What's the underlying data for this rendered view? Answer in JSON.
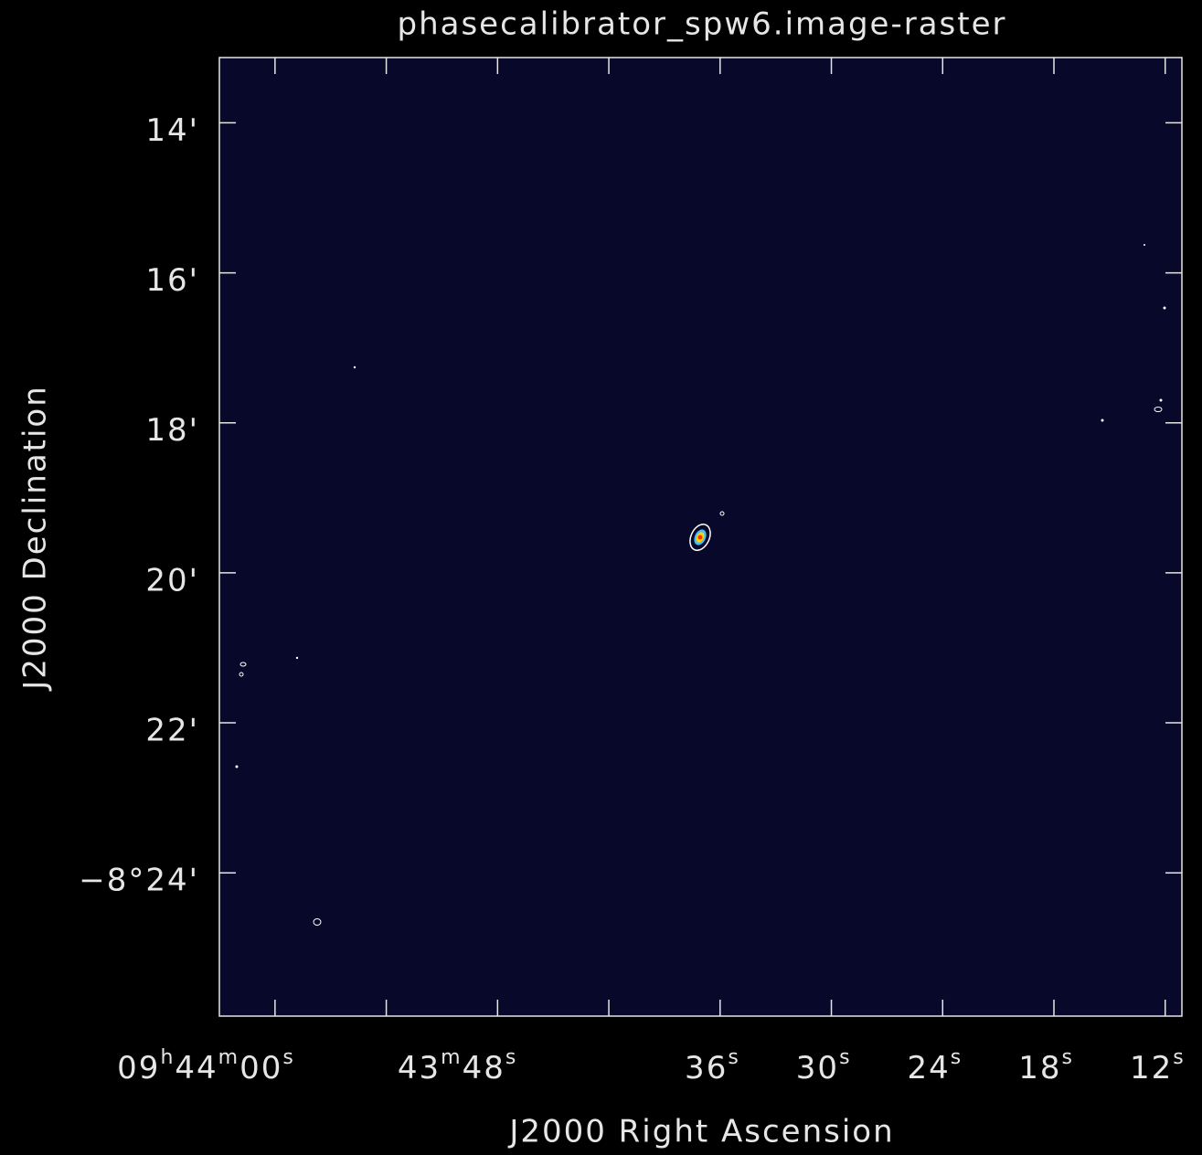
{
  "chart_data": {
    "type": "image",
    "title": "phasecalibrator_spw6.image-raster",
    "x_label": "J2000 Right Ascension",
    "y_label": "J2000 Declination",
    "xlim": [
      63,
      11.1
    ],
    "xticks": [
      {
        "value": 60,
        "label": "09h44m00s"
      },
      {
        "value": 48,
        "label": "43m48s"
      },
      {
        "value": 36,
        "label": "36s"
      },
      {
        "value": 30,
        "label": "30s"
      },
      {
        "value": 24,
        "label": "24s"
      },
      {
        "value": 18,
        "label": "18s"
      },
      {
        "value": 12,
        "label": "12s"
      }
    ],
    "xminor_ticks": [
      54,
      42
    ],
    "ylim": [
      -505.91,
      -493.13
    ],
    "yticks": [
      {
        "value": -494,
        "label": "14'"
      },
      {
        "value": -496,
        "label": "16'"
      },
      {
        "value": -498,
        "label": "18'"
      },
      {
        "value": -500,
        "label": "20'"
      },
      {
        "value": -502,
        "label": "22'"
      },
      {
        "value": -504,
        "label": "−8°24'"
      }
    ],
    "background": "#07082a"
  }
}
